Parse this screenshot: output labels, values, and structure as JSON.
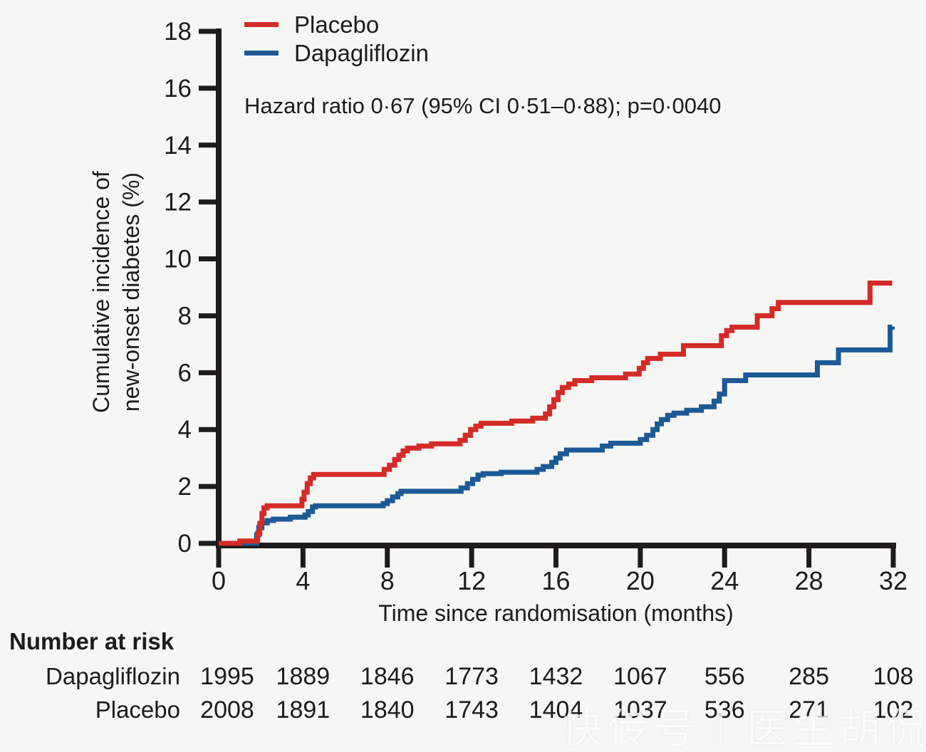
{
  "accent_colors": {
    "placebo_red": "#d32b27",
    "dapagliflozin_blue": "#1c5a96",
    "axis_black": "#1d1b1c",
    "background": "#f6f6f4"
  },
  "annotation": {
    "hazard_text": "Hazard ratio 0·67 (95% CI 0·51–0·88); p=0·0040"
  },
  "watermark": {
    "text": "快传号丨医生胡侃"
  },
  "chart_data": {
    "type": "line",
    "subtype": "step-cumulative-incidence",
    "title": "",
    "xlabel": "Time since randomisation (months)",
    "ylabel_line1": "Cumulative incidence of",
    "ylabel_line2": "new-onset diabetes (%)",
    "xlim": [
      0,
      32
    ],
    "ylim": [
      0,
      18
    ],
    "xticks": [
      0,
      4,
      8,
      12,
      16,
      20,
      24,
      28,
      32
    ],
    "yticks": [
      0,
      2,
      4,
      6,
      8,
      10,
      12,
      14,
      16,
      18
    ],
    "grid": false,
    "legend_position": "top-left",
    "series": [
      {
        "name": "Placebo",
        "color": "#d32b27",
        "step_points": [
          [
            0,
            0
          ],
          [
            1.0,
            0.08
          ],
          [
            1.85,
            0.35
          ],
          [
            1.95,
            0.7
          ],
          [
            2.05,
            1.05
          ],
          [
            2.15,
            1.25
          ],
          [
            2.3,
            1.32
          ],
          [
            3.95,
            1.55
          ],
          [
            4.05,
            1.8
          ],
          [
            4.2,
            2.1
          ],
          [
            4.35,
            2.3
          ],
          [
            4.5,
            2.42
          ],
          [
            7.85,
            2.6
          ],
          [
            8.1,
            2.75
          ],
          [
            8.35,
            2.95
          ],
          [
            8.55,
            3.1
          ],
          [
            8.75,
            3.25
          ],
          [
            8.95,
            3.35
          ],
          [
            9.5,
            3.42
          ],
          [
            10.1,
            3.5
          ],
          [
            11.45,
            3.62
          ],
          [
            11.7,
            3.8
          ],
          [
            11.95,
            4.0
          ],
          [
            12.2,
            4.12
          ],
          [
            12.45,
            4.22
          ],
          [
            13.9,
            4.3
          ],
          [
            14.9,
            4.4
          ],
          [
            15.5,
            4.55
          ],
          [
            15.7,
            4.8
          ],
          [
            15.9,
            5.05
          ],
          [
            16.1,
            5.3
          ],
          [
            16.3,
            5.48
          ],
          [
            16.6,
            5.6
          ],
          [
            16.9,
            5.72
          ],
          [
            17.7,
            5.82
          ],
          [
            19.3,
            5.95
          ],
          [
            19.95,
            6.15
          ],
          [
            20.15,
            6.35
          ],
          [
            20.35,
            6.5
          ],
          [
            20.95,
            6.65
          ],
          [
            22.05,
            6.95
          ],
          [
            23.85,
            7.3
          ],
          [
            24.1,
            7.48
          ],
          [
            24.35,
            7.6
          ],
          [
            25.55,
            8.0
          ],
          [
            26.25,
            8.25
          ],
          [
            26.55,
            8.47
          ],
          [
            30.9,
            9.15
          ],
          [
            31.95,
            9.15
          ]
        ]
      },
      {
        "name": "Dapagliflozin",
        "color": "#1c5a96",
        "step_points": [
          [
            0,
            0
          ],
          [
            1.8,
            0.3
          ],
          [
            1.9,
            0.55
          ],
          [
            2.05,
            0.72
          ],
          [
            2.3,
            0.8
          ],
          [
            2.6,
            0.85
          ],
          [
            3.4,
            0.92
          ],
          [
            4.1,
            1.0
          ],
          [
            4.25,
            1.12
          ],
          [
            4.45,
            1.28
          ],
          [
            4.6,
            1.32
          ],
          [
            7.8,
            1.4
          ],
          [
            8.0,
            1.5
          ],
          [
            8.25,
            1.63
          ],
          [
            8.5,
            1.75
          ],
          [
            8.65,
            1.83
          ],
          [
            11.5,
            1.95
          ],
          [
            11.8,
            2.1
          ],
          [
            12.05,
            2.25
          ],
          [
            12.3,
            2.4
          ],
          [
            12.55,
            2.45
          ],
          [
            13.4,
            2.5
          ],
          [
            15.1,
            2.6
          ],
          [
            15.4,
            2.7
          ],
          [
            15.8,
            2.85
          ],
          [
            16.0,
            3.0
          ],
          [
            16.2,
            3.15
          ],
          [
            16.5,
            3.28
          ],
          [
            18.2,
            3.42
          ],
          [
            18.6,
            3.52
          ],
          [
            20.0,
            3.65
          ],
          [
            20.3,
            3.8
          ],
          [
            20.6,
            4.0
          ],
          [
            20.8,
            4.2
          ],
          [
            21.0,
            4.35
          ],
          [
            21.3,
            4.5
          ],
          [
            21.6,
            4.58
          ],
          [
            22.2,
            4.68
          ],
          [
            22.9,
            4.8
          ],
          [
            23.5,
            5.0
          ],
          [
            23.75,
            5.25
          ],
          [
            24.0,
            5.72
          ],
          [
            25.0,
            5.92
          ],
          [
            28.4,
            6.35
          ],
          [
            29.4,
            6.8
          ],
          [
            31.85,
            7.6
          ],
          [
            31.95,
            7.62
          ]
        ]
      }
    ]
  },
  "risk_table": {
    "title": "Number at risk",
    "months": [
      0,
      4,
      8,
      12,
      16,
      20,
      24,
      28,
      32
    ],
    "rows": [
      {
        "label": "Dapagliflozin",
        "values": [
          "1995",
          "1889",
          "1846",
          "1773",
          "1432",
          "1067",
          "556",
          "285",
          "108"
        ]
      },
      {
        "label": "Placebo",
        "values": [
          "2008",
          "1891",
          "1840",
          "1743",
          "1404",
          "1037",
          "536",
          "271",
          "102"
        ]
      }
    ]
  }
}
